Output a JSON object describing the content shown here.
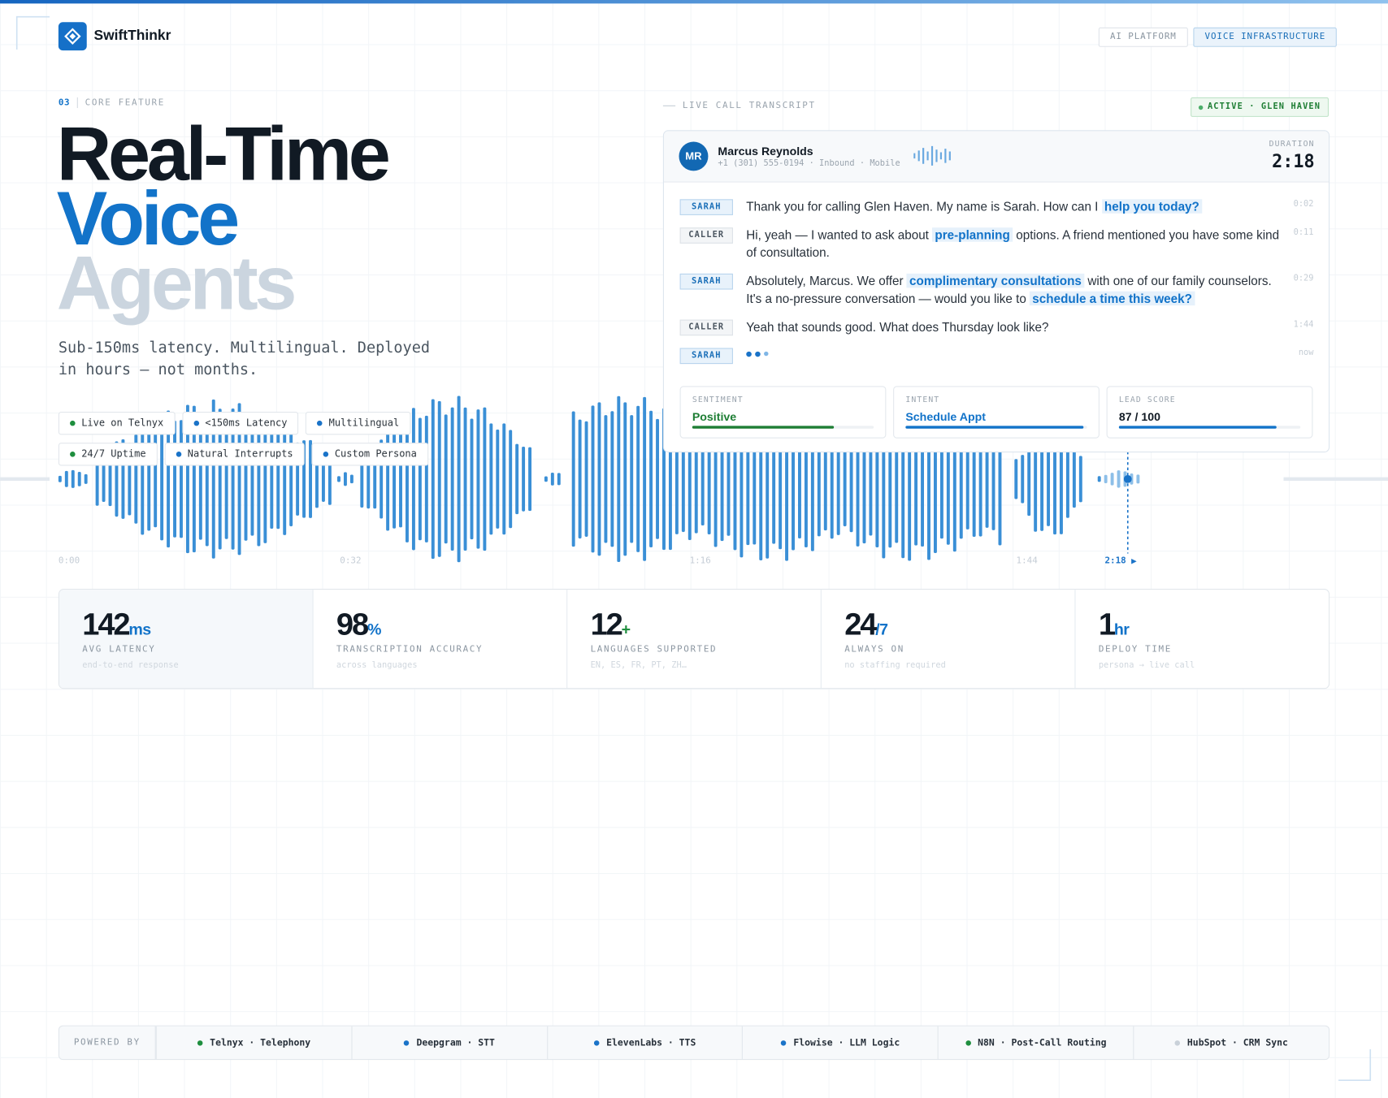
{
  "header": {
    "brand": "SwiftThinkr",
    "tags": [
      "AI PLATFORM",
      "VOICE INFRASTRUCTURE"
    ]
  },
  "hero": {
    "section_number": "03",
    "section_label": "CORE FEATURE",
    "title_lines": [
      "Real-Time",
      "Voice",
      "Agents"
    ],
    "subtitle": "Sub-150ms latency. Multilingual. Deployed in hours — not months.",
    "pills": [
      {
        "text": "Live on Telnyx",
        "color": "#1e8e3e"
      },
      {
        "text": "<150ms Latency",
        "color": "#1a73c8"
      },
      {
        "text": "Multilingual",
        "color": "#1a73c8"
      },
      {
        "text": "24/7 Uptime",
        "color": "#1e8e3e"
      },
      {
        "text": "Natural Interrupts",
        "color": "#1a73c8"
      },
      {
        "text": "Custom Persona",
        "color": "#1a73c8"
      }
    ]
  },
  "transcript": {
    "label": "LIVE CALL TRANSCRIPT",
    "status": "ACTIVE · GLEN HAVEN",
    "avatar": "MR",
    "caller_name": "Marcus Reynolds",
    "caller_meta": "+1 (301) 555-0194 · Inbound · Mobile",
    "duration_label": "DURATION",
    "duration": "2:18",
    "messages": [
      {
        "speaker": "SARAH",
        "time": "0:02",
        "segments": [
          {
            "text": "Thank you for calling Glen Haven. My name is Sarah. How can I ",
            "highlight": false
          },
          {
            "text": "help you today?",
            "highlight": true
          }
        ]
      },
      {
        "speaker": "CALLER",
        "time": "0:11",
        "segments": [
          {
            "text": "Hi, yeah — I wanted to ask about ",
            "highlight": false
          },
          {
            "text": "pre-planning",
            "highlight": true
          },
          {
            "text": " options. A friend mentioned you have some kind of consultation.",
            "highlight": false
          }
        ]
      },
      {
        "speaker": "SARAH",
        "time": "0:29",
        "segments": [
          {
            "text": "Absolutely, Marcus. We offer ",
            "highlight": false
          },
          {
            "text": "complimentary consultations",
            "highlight": true
          },
          {
            "text": " with one of our family counselors. It's a no-pressure conversation — would you like to ",
            "highlight": false
          },
          {
            "text": "schedule a time this week?",
            "highlight": true
          }
        ]
      },
      {
        "speaker": "CALLER",
        "time": "1:44",
        "segments": [
          {
            "text": "Yeah that sounds good. What does Thursday look like?",
            "highlight": false
          }
        ]
      },
      {
        "speaker": "SARAH",
        "time": "now",
        "segments": []
      }
    ],
    "metrics": [
      {
        "label": "SENTIMENT",
        "value": "Positive",
        "color": "#1e7e34",
        "fill": 78
      },
      {
        "label": "INTENT",
        "value": "Schedule Appt",
        "color": "#1273c9",
        "fill": 98
      },
      {
        "label": "LEAD SCORE",
        "value": "87 / 100",
        "color": "#1273c9",
        "fill": 87
      }
    ]
  },
  "timeline": [
    "0:00",
    "0:32",
    "1:16",
    "1:44",
    "2:18"
  ],
  "stats": [
    {
      "value": 142,
      "unit": "ms",
      "unit_color": "#1273c9",
      "label": "AVG LATENCY",
      "note": "end-to-end response"
    },
    {
      "value": 98,
      "unit": "%",
      "unit_color": "#1273c9",
      "label": "TRANSCRIPTION ACCURACY",
      "note": "across languages"
    },
    {
      "value": 12,
      "unit": "+",
      "unit_color": "#1e8e3e",
      "label": "LANGUAGES SUPPORTED",
      "note": "EN, ES, FR, PT, ZH…"
    },
    {
      "value": 24,
      "unit": "/7",
      "unit_color": "#1273c9",
      "label": "ALWAYS ON",
      "note": "no staffing required"
    },
    {
      "value": 1,
      "unit": "hr",
      "unit_color": "#1273c9",
      "label": "DEPLOY TIME",
      "note": "persona → live call"
    }
  ],
  "footer": {
    "label": "POWERED BY",
    "partners": [
      {
        "name": "Telnyx · Telephony",
        "color": "#1e8e3e"
      },
      {
        "name": "Deepgram · STT",
        "color": "#1a73c8"
      },
      {
        "name": "ElevenLabs · TTS",
        "color": "#1a73c8"
      },
      {
        "name": "Flowise · LLM Logic",
        "color": "#1a73c8"
      },
      {
        "name": "N8N · Post-Call Routing",
        "color": "#1e8e3e"
      },
      {
        "name": "HubSpot · CRM Sync",
        "color": "#c9d1d9"
      }
    ]
  }
}
